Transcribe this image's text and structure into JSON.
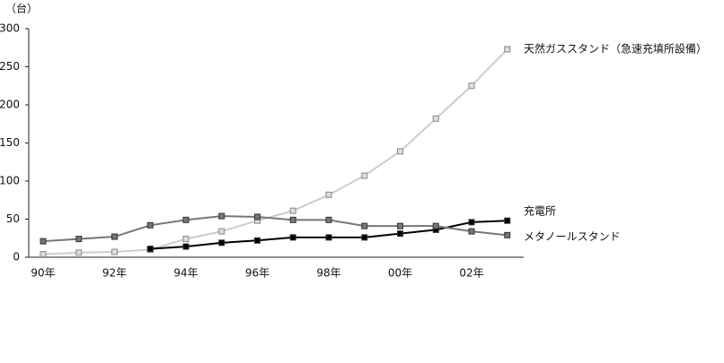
{
  "chart_data": {
    "type": "line",
    "y_label": "（台）",
    "categories": [
      "90年",
      null,
      "92年",
      null,
      "94年",
      null,
      "96年",
      null,
      "98年",
      null,
      "00年",
      null,
      "02年",
      null
    ],
    "series": [
      {
        "name": "天然ガススタンド（急速充填所設備）",
        "color": "#cccccc",
        "marker_color": "#dddddd",
        "values": [
          4,
          6,
          7,
          10,
          24,
          34,
          48,
          61,
          82,
          107,
          139,
          182,
          225,
          273
        ]
      },
      {
        "name": "充電所",
        "color": "#000000",
        "marker_color": "#000000",
        "values": [
          null,
          null,
          null,
          11,
          14,
          19,
          22,
          26,
          26,
          26,
          31,
          36,
          46,
          48
        ]
      },
      {
        "name": "メタノールスタンド",
        "color": "#777777",
        "marker_color": "#777777",
        "values": [
          21,
          24,
          27,
          42,
          49,
          54,
          53,
          49,
          49,
          41,
          41,
          41,
          34,
          29
        ]
      }
    ],
    "ylim": [
      0,
      300
    ],
    "yticks": [
      0,
      50,
      100,
      150,
      200,
      250,
      300
    ],
    "grid": false
  }
}
